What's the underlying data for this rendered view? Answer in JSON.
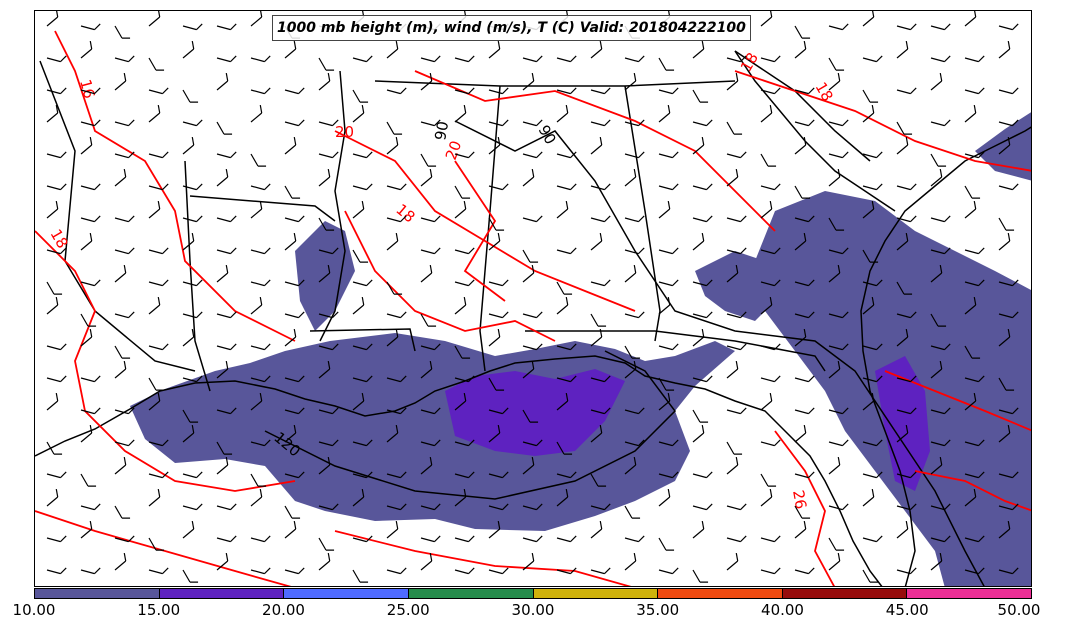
{
  "title": "1000 mb height (m), wind (m/s), T (C) Valid: 201804222100",
  "colors": {
    "coast": "#000000",
    "temperature_contour": "#ff0000",
    "height_contour": "#000000",
    "barb": "#000000"
  },
  "colorbar": {
    "ticks": [
      "10.00",
      "15.00",
      "20.00",
      "25.00",
      "30.00",
      "35.00",
      "40.00",
      "45.00",
      "50.00"
    ],
    "colors": [
      "#58569a",
      "#5e22c0",
      "#4f6bff",
      "#268c4c",
      "#cfb20c",
      "#f04b10",
      "#970c0c",
      "#ec2f96"
    ]
  },
  "temperature_labels": [
    "16",
    "18",
    "20",
    "20",
    "18",
    "18",
    "18",
    "26",
    "20",
    "16"
  ],
  "height_labels": [
    "90",
    "90",
    "120"
  ]
}
